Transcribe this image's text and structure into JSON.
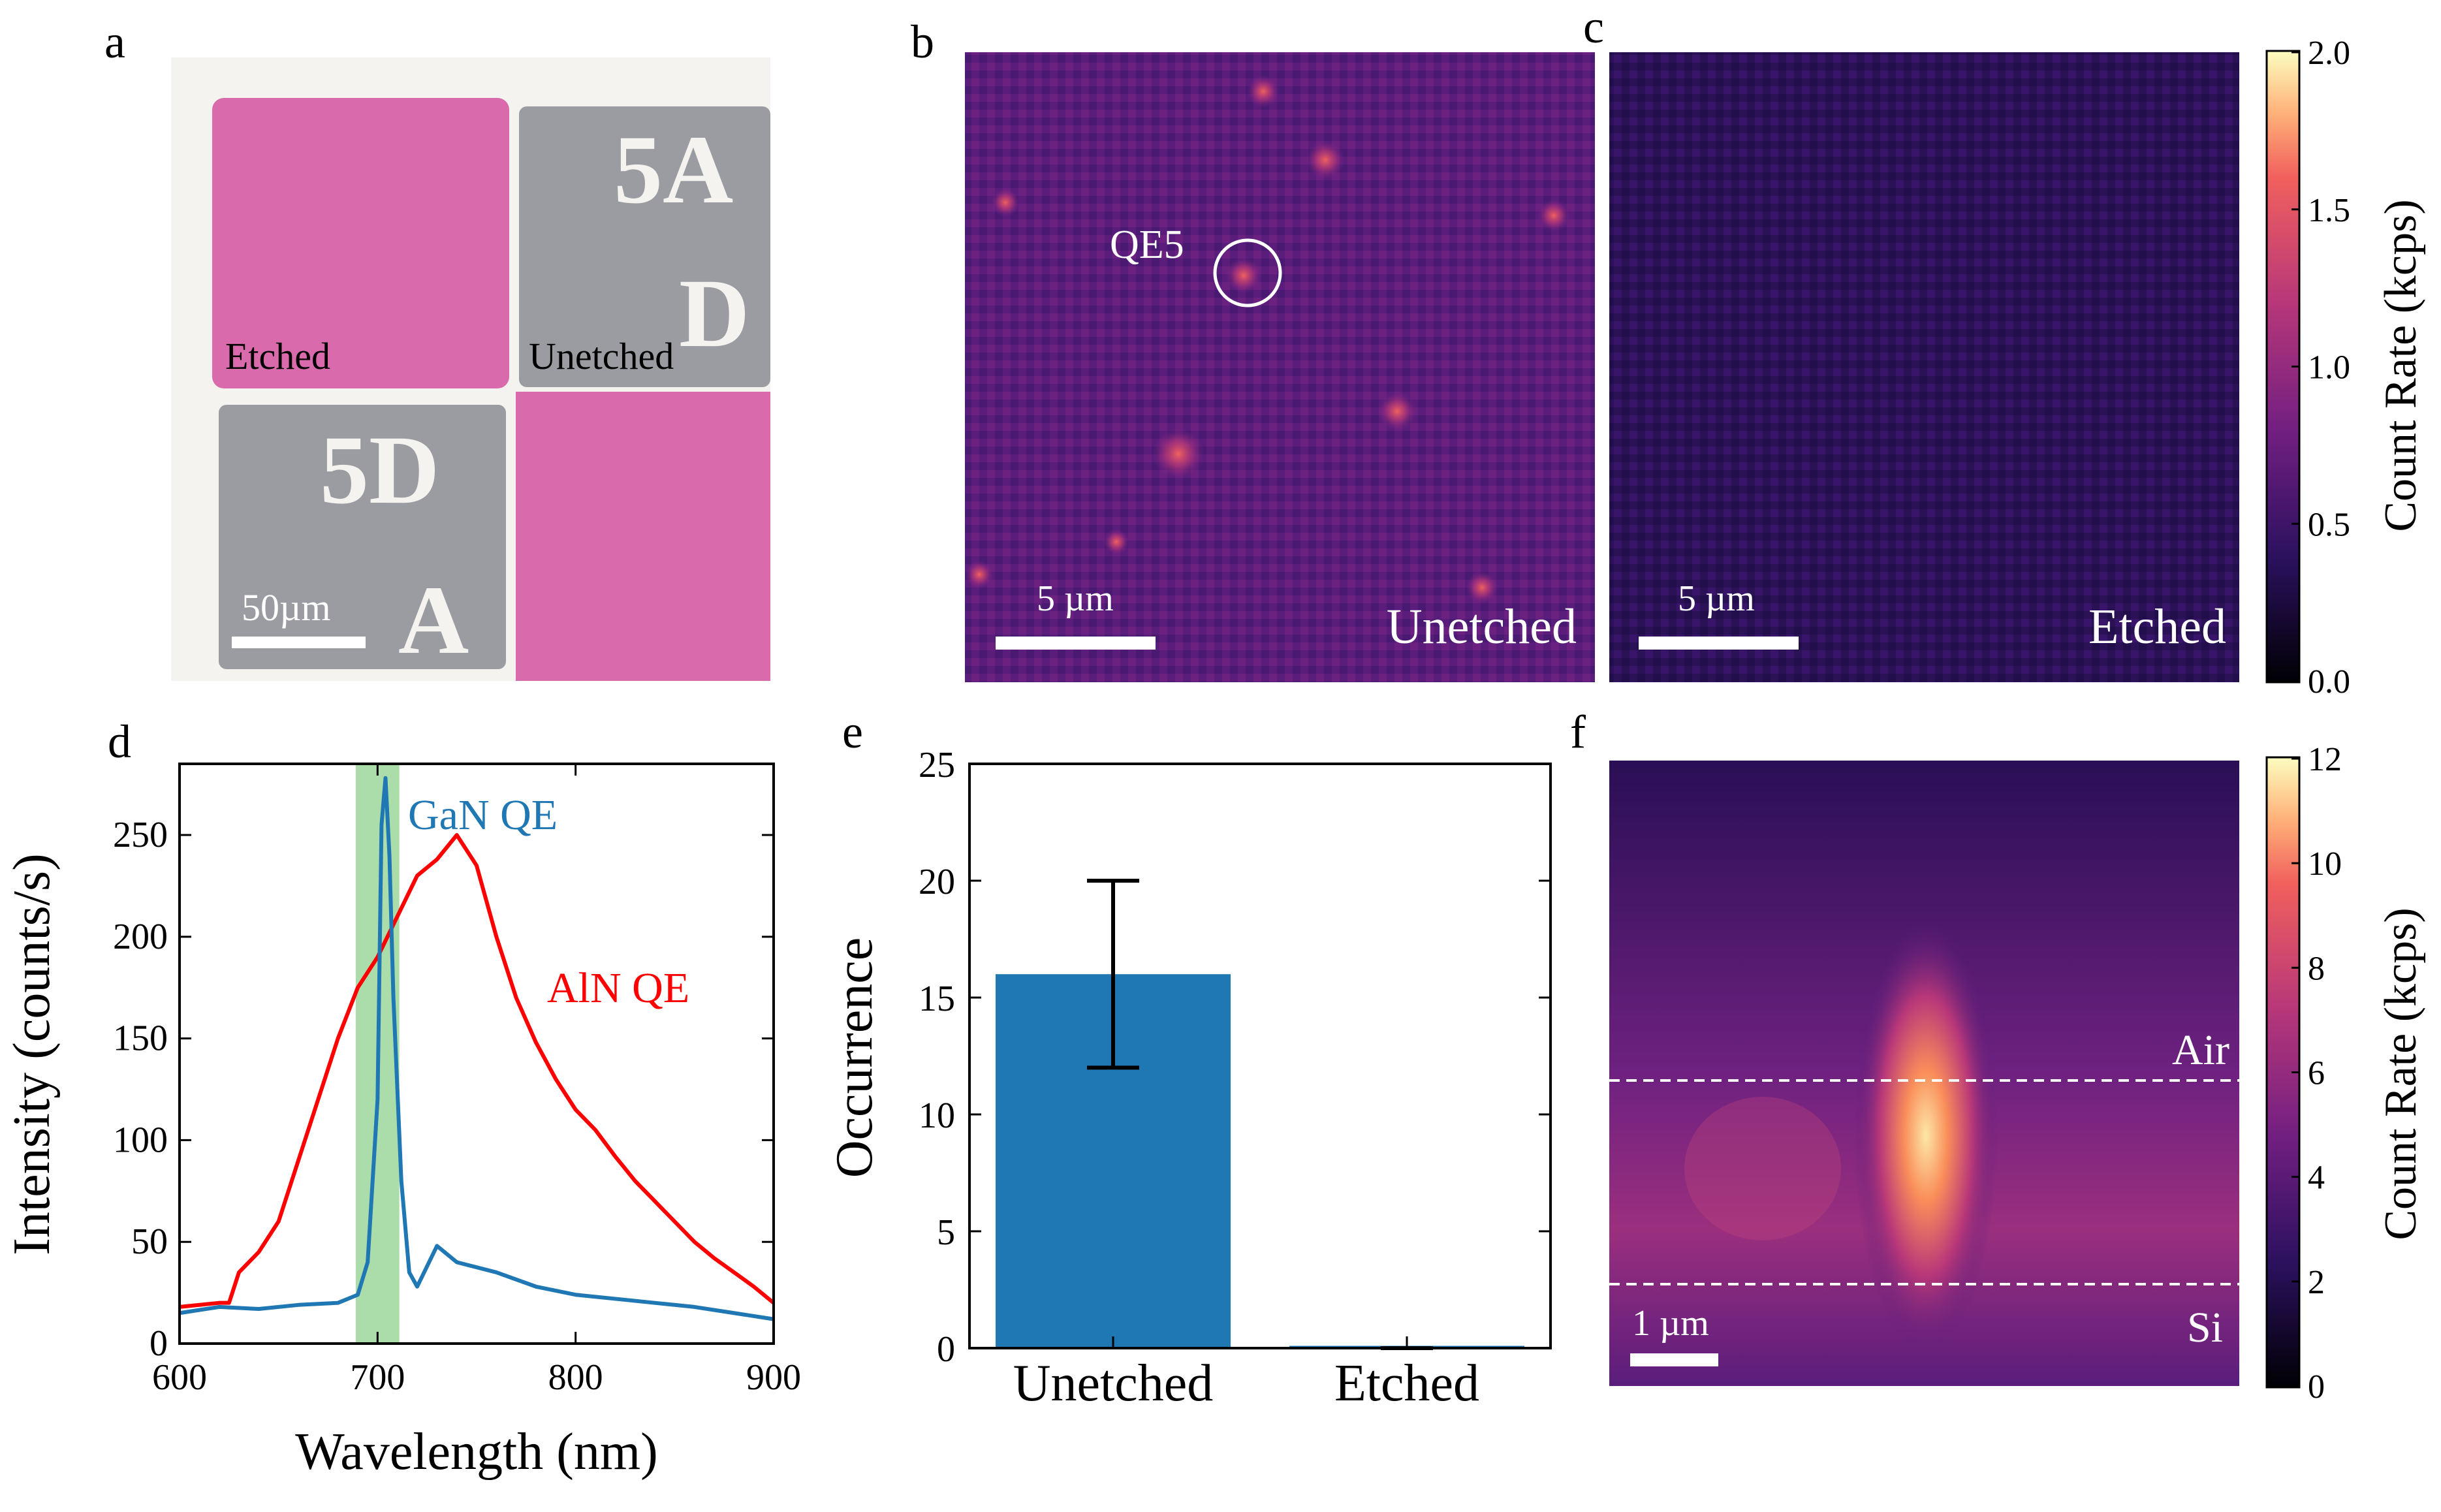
{
  "panel_labels": [
    "a",
    "b",
    "c",
    "d",
    "e",
    "f"
  ],
  "panel_a": {
    "labels": {
      "etched": "Etched",
      "unetched": "Unetched"
    },
    "scale_bar": "50µm",
    "markings": {
      "top_right": "5A",
      "top_right_lower": "D",
      "bottom_left": "5D",
      "bottom_left_lower": "A"
    },
    "colors": {
      "etched": "#d96aac",
      "unetched": "#9b9ca1",
      "frame": "#f4f3ef"
    }
  },
  "panel_b": {
    "label": "Unetched",
    "scale_bar": "5 µm",
    "annotation": "QE5"
  },
  "panel_c": {
    "label": "Etched",
    "scale_bar": "5 µm"
  },
  "colorbar_top": {
    "label": "Count Rate (kcps)",
    "ticks": [
      "0.0",
      "0.5",
      "1.0",
      "1.5",
      "2.0"
    ],
    "min": 0,
    "max": 2
  },
  "panel_f": {
    "labels": {
      "air": "Air",
      "si": "Si"
    },
    "scale_bar": "1 µm"
  },
  "colorbar_bottom": {
    "label": "Count Rate (kcps)",
    "ticks": [
      "0",
      "2",
      "4",
      "6",
      "8",
      "10",
      "12"
    ],
    "min": 0,
    "max": 12
  },
  "chart_data": [
    {
      "panel": "d",
      "type": "line",
      "xlabel": "Wavelength (nm)",
      "ylabel": "Intensity (counts/s)",
      "xlim": [
        600,
        900
      ],
      "ylim": [
        0,
        285
      ],
      "xticks": [
        "600",
        "700",
        "800",
        "900"
      ],
      "yticks": [
        "0",
        "50",
        "100",
        "150",
        "200",
        "250"
      ],
      "highlight_band": [
        689,
        711
      ],
      "highlight_color": "#8fd18f",
      "series": [
        {
          "name": "GaN QE",
          "color": "#1f77b4",
          "x": [
            600,
            620,
            640,
            660,
            680,
            690,
            695,
            700,
            702,
            704,
            706,
            708,
            712,
            716,
            720,
            730,
            740,
            760,
            780,
            800,
            820,
            840,
            860,
            880,
            900
          ],
          "y": [
            15,
            18,
            17,
            19,
            20,
            24,
            40,
            120,
            255,
            278,
            240,
            170,
            80,
            35,
            28,
            48,
            40,
            35,
            28,
            24,
            22,
            20,
            18,
            15,
            12
          ]
        },
        {
          "name": "AlN QE",
          "color": "#ff0000",
          "x": [
            600,
            620,
            625,
            630,
            640,
            650,
            660,
            670,
            680,
            690,
            700,
            710,
            720,
            730,
            740,
            750,
            760,
            770,
            780,
            790,
            800,
            810,
            820,
            830,
            840,
            850,
            860,
            870,
            880,
            890,
            900
          ],
          "y": [
            18,
            20,
            20,
            35,
            45,
            60,
            90,
            120,
            150,
            175,
            190,
            210,
            230,
            238,
            250,
            235,
            200,
            170,
            148,
            130,
            115,
            105,
            92,
            80,
            70,
            60,
            50,
            42,
            35,
            28,
            20
          ]
        }
      ]
    },
    {
      "panel": "e",
      "type": "bar",
      "ylabel": "Occurrence",
      "categories": [
        "Unetched",
        "Etched"
      ],
      "values": [
        16,
        0
      ],
      "error": [
        4,
        0
      ],
      "ylim": [
        0,
        25
      ],
      "yticks": [
        "0",
        "5",
        "10",
        "15",
        "20",
        "25"
      ],
      "bar_color": "#1f77b4"
    }
  ]
}
